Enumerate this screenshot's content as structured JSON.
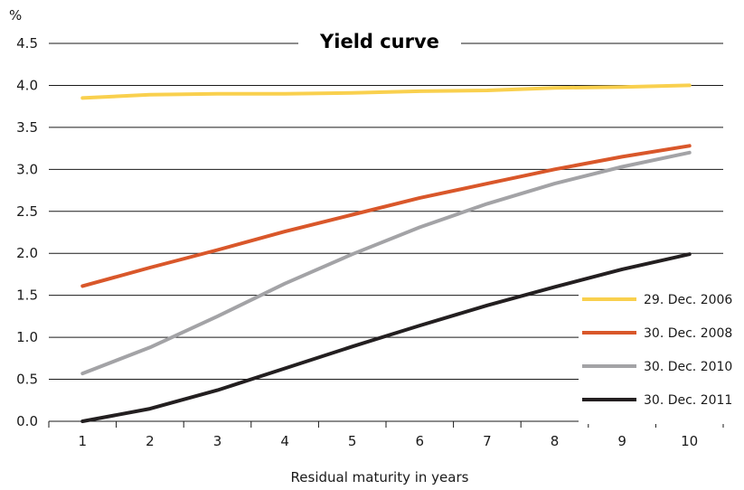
{
  "chart_data": {
    "type": "line",
    "title": "Yield curve",
    "unit_label": "%",
    "xlabel": "Residual maturity in years",
    "ylabel": "",
    "x": [
      1,
      2,
      3,
      4,
      5,
      6,
      7,
      8,
      9,
      10
    ],
    "x_tick_labels": [
      "1",
      "2",
      "3",
      "4",
      "5",
      "6",
      "7",
      "8",
      "9",
      "10"
    ],
    "ylim": [
      0,
      4.5
    ],
    "y_tick_labels": [
      "0.0",
      "0.5",
      "1.0",
      "1.5",
      "2.0",
      "2.5",
      "3.0",
      "3.5",
      "4.0",
      "4.5"
    ],
    "grid": "horizontal",
    "legend_position": "bottom-right",
    "series": [
      {
        "name": "29. Dec. 2006",
        "color": "#F9D04E",
        "values": [
          3.85,
          3.89,
          3.9,
          3.9,
          3.91,
          3.93,
          3.94,
          3.97,
          3.98,
          4.0
        ]
      },
      {
        "name": "30. Dec. 2008",
        "color": "#D9572A",
        "values": [
          1.61,
          1.83,
          2.04,
          2.26,
          2.46,
          2.66,
          2.83,
          3.0,
          3.15,
          3.28
        ]
      },
      {
        "name": "30. Dec. 2010",
        "color": "#A3A3A6",
        "values": [
          0.57,
          0.88,
          1.25,
          1.64,
          1.99,
          2.31,
          2.59,
          2.83,
          3.03,
          3.2
        ]
      },
      {
        "name": "30. Dec. 2011",
        "color": "#231F20",
        "values": [
          0.0,
          0.15,
          0.37,
          0.63,
          0.89,
          1.14,
          1.38,
          1.6,
          1.81,
          1.99
        ]
      }
    ]
  }
}
